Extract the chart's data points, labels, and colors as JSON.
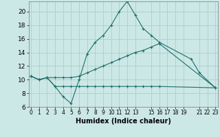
{
  "title": "",
  "xlabel": "Humidex (Indice chaleur)",
  "bg_color": "#cce8e6",
  "grid_color": "#b0d0ce",
  "line_color": "#1a6e6a",
  "lines": [
    {
      "x": [
        0,
        1,
        2,
        3,
        4,
        5,
        6,
        7,
        8,
        9,
        10,
        11,
        12,
        13,
        14,
        15,
        16,
        20,
        21,
        23
      ],
      "y": [
        10.5,
        10.0,
        10.3,
        9.0,
        7.5,
        6.5,
        10.0,
        13.8,
        15.5,
        16.5,
        18.0,
        20.0,
        21.5,
        19.5,
        17.5,
        16.5,
        15.5,
        13.0,
        11.0,
        8.8
      ]
    },
    {
      "x": [
        0,
        1,
        2,
        3,
        4,
        5,
        6,
        7,
        8,
        9,
        10,
        11,
        12,
        13,
        14,
        15,
        16,
        23
      ],
      "y": [
        10.5,
        10.0,
        10.3,
        10.3,
        10.3,
        10.3,
        10.5,
        11.0,
        11.5,
        12.0,
        12.5,
        13.0,
        13.5,
        14.0,
        14.3,
        14.8,
        15.3,
        8.8
      ]
    },
    {
      "x": [
        0,
        1,
        2,
        3,
        4,
        5,
        6,
        7,
        8,
        9,
        10,
        11,
        12,
        13,
        14,
        15,
        16,
        23
      ],
      "y": [
        10.5,
        10.0,
        10.3,
        9.0,
        9.0,
        9.0,
        9.0,
        9.0,
        9.0,
        9.0,
        9.0,
        9.0,
        9.0,
        9.0,
        9.0,
        9.0,
        9.0,
        8.8
      ]
    }
  ],
  "xlim": [
    0,
    23
  ],
  "ylim": [
    6,
    21.5
  ],
  "yticks": [
    6,
    8,
    10,
    12,
    14,
    16,
    18,
    20
  ],
  "xtick_pos": [
    0,
    1,
    2,
    3,
    4,
    5,
    6,
    7,
    8,
    9,
    10,
    11,
    12,
    13,
    15,
    16,
    17,
    18,
    19,
    21,
    22,
    23
  ],
  "xtick_labels": [
    "0",
    "1",
    "2",
    "3",
    "4",
    "5",
    "6",
    "7",
    "8",
    "9",
    "10",
    "11",
    "12",
    "13",
    "15",
    "16",
    "17",
    "18",
    "19",
    "21",
    "22",
    "23"
  ]
}
